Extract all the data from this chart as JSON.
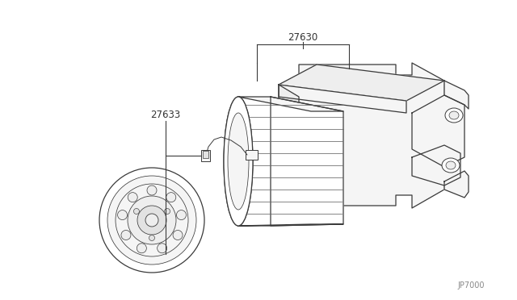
{
  "bg_color": "#ffffff",
  "lc": "#3a3a3a",
  "lc_thin": "#666666",
  "label_color": "#333333",
  "ref_color": "#888888",
  "label_27630": "27630",
  "label_27633": "27633",
  "diagram_ref": "JP7000",
  "figsize": [
    6.4,
    3.72
  ],
  "dpi": 100,
  "lw_main": 0.9,
  "lw_thin": 0.55,
  "face_white": "#ffffff",
  "face_light": "#f5f5f5",
  "face_mid": "#eeeeee",
  "face_dark": "#e2e2e2"
}
